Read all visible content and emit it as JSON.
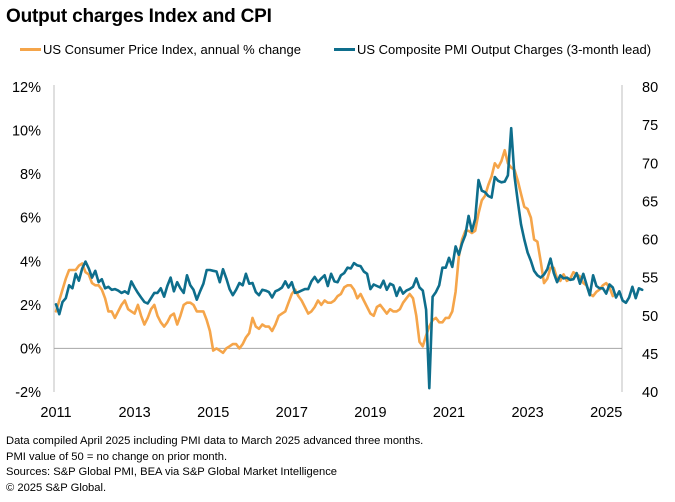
{
  "title": "Output charges Index and CPI",
  "legend": [
    {
      "label": "US Consumer Price Index, annual % change",
      "color": "#F5A54A"
    },
    {
      "label": "US Composite PMI Output Charges (3-month lead)",
      "color": "#0E6E8C"
    }
  ],
  "footer": [
    "Data compiled April 2025 including PMI data to March 2025 advanced three months.",
    "PMI value of 50 = no change on prior month.",
    "Sources: S&P Global PMI, BEA via S&P Global Market Intelligence",
    "© 2025 S&P Global."
  ],
  "chart_data": {
    "type": "line",
    "title": "Output charges Index and CPI",
    "x_start": "2011-01",
    "x_frequency": "monthly",
    "x_tick_labels": [
      "2011",
      "2013",
      "2015",
      "2017",
      "2019",
      "2021",
      "2023",
      "2025"
    ],
    "y_left": {
      "label": "",
      "ylim": [
        -2,
        12
      ],
      "ticks": [
        "-2%",
        "0%",
        "2%",
        "4%",
        "6%",
        "8%",
        "10%",
        "12%"
      ]
    },
    "y_right": {
      "label": "",
      "ylim": [
        40,
        80
      ],
      "ticks": [
        "40",
        "45",
        "50",
        "55",
        "60",
        "65",
        "70",
        "75",
        "80"
      ]
    },
    "grid": false,
    "reference_line": {
      "axis": "left",
      "value": 0
    },
    "legend_position": "top",
    "series": [
      {
        "name": "US Consumer Price Index, annual % change",
        "axis": "left",
        "color": "#F5A54A",
        "start": "2011-01",
        "values": [
          1.7,
          2.2,
          2.7,
          3.2,
          3.6,
          3.6,
          3.6,
          3.8,
          3.9,
          3.5,
          3.4,
          3.0,
          2.9,
          2.9,
          2.7,
          2.3,
          1.7,
          1.7,
          1.4,
          1.7,
          2.0,
          2.2,
          1.8,
          1.7,
          1.6,
          2.0,
          1.5,
          1.1,
          1.4,
          1.8,
          2.0,
          1.5,
          1.2,
          1.0,
          1.2,
          1.5,
          1.6,
          1.1,
          1.5,
          2.0,
          2.1,
          2.1,
          2.0,
          1.7,
          1.7,
          1.7,
          1.3,
          0.8,
          -0.1,
          0.0,
          -0.1,
          -0.2,
          0.0,
          0.1,
          0.2,
          0.2,
          0.0,
          0.2,
          0.5,
          0.7,
          1.4,
          1.0,
          0.9,
          1.1,
          1.0,
          1.0,
          0.8,
          1.1,
          1.5,
          1.6,
          1.7,
          2.1,
          2.5,
          2.7,
          2.4,
          2.2,
          1.9,
          1.6,
          1.7,
          1.9,
          2.2,
          2.0,
          2.2,
          2.1,
          2.1,
          2.2,
          2.4,
          2.5,
          2.8,
          2.9,
          2.9,
          2.7,
          2.3,
          2.5,
          2.2,
          1.9,
          1.6,
          1.5,
          1.9,
          2.0,
          1.8,
          1.6,
          1.8,
          1.7,
          1.7,
          1.8,
          2.1,
          2.3,
          2.5,
          2.3,
          1.5,
          0.3,
          0.1,
          0.6,
          1.0,
          1.3,
          1.4,
          1.2,
          1.2,
          1.4,
          1.4,
          1.7,
          2.6,
          4.2,
          5.0,
          5.4,
          5.4,
          5.3,
          5.4,
          6.2,
          6.8,
          7.0,
          7.5,
          7.9,
          8.5,
          8.3,
          8.6,
          9.1,
          8.5,
          8.3,
          8.2,
          7.7,
          7.1,
          6.5,
          6.4,
          6.0,
          5.0,
          4.9,
          4.0,
          3.0,
          3.2,
          3.7,
          3.7,
          3.2,
          3.1,
          3.4,
          3.1,
          3.2,
          3.5,
          3.4,
          3.3,
          3.0,
          2.9,
          2.5,
          2.4,
          2.6,
          2.7,
          2.9,
          3.0,
          2.8,
          2.4
        ]
      },
      {
        "name": "US Composite PMI Output Charges (3-month lead)",
        "axis": "right",
        "color": "#0E6E8C",
        "start": "2011-01",
        "values": [
          51.5,
          50.2,
          51.8,
          52.3,
          54.0,
          53.6,
          55.5,
          54.6,
          56.2,
          57.1,
          56.2,
          55.0,
          55.9,
          54.4,
          54.8,
          53.6,
          53.8,
          53.4,
          53.5,
          53.3,
          53.0,
          53.2,
          52.9,
          54.5,
          53.7,
          53.0,
          52.4,
          51.8,
          51.6,
          52.3,
          53.0,
          53.0,
          53.6,
          52.5,
          53.9,
          55.0,
          53.2,
          54.4,
          53.6,
          53.0,
          55.3,
          54.0,
          53.4,
          52.1,
          53.2,
          54.2,
          56.0,
          56.0,
          55.9,
          55.8,
          54.4,
          56.1,
          54.9,
          53.5,
          52.7,
          53.4,
          54.3,
          54.0,
          55.5,
          54.2,
          54.3,
          53.1,
          52.7,
          53.4,
          53.3,
          53.1,
          52.4,
          53.2,
          53.4,
          53.7,
          54.5,
          53.7,
          54.4,
          53.0,
          53.1,
          53.3,
          53.5,
          53.5,
          54.5,
          55.1,
          54.4,
          54.9,
          55.3,
          53.9,
          55.5,
          54.5,
          54.4,
          55.3,
          55.6,
          56.3,
          56.2,
          56.9,
          56.6,
          56.5,
          55.8,
          55.5,
          53.5,
          54.1,
          53.9,
          53.7,
          54.6,
          53.4,
          54.2,
          54.0,
          52.6,
          53.7,
          52.9,
          53.3,
          53.5,
          53.8,
          54.9,
          53.7,
          53.3,
          50.8,
          40.5,
          52.5,
          53.1,
          54.0,
          56.3,
          56.3,
          57.6,
          56.4,
          59.1,
          58.0,
          59.5,
          60.6,
          63.1,
          61.1,
          62.7,
          67.8,
          66.4,
          66.2,
          65.7,
          65.5,
          68.2,
          67.7,
          67.5,
          67.6,
          68.4,
          74.6,
          68.3,
          65.0,
          62.0,
          60.0,
          58.3,
          57.2,
          55.9,
          55.3,
          55.0,
          55.4,
          56.1,
          57.5,
          55.6,
          54.4,
          55.3,
          54.9,
          55.0,
          54.7,
          54.8,
          55.6,
          54.2,
          55.5,
          54.1,
          52.7,
          55.3,
          53.9,
          53.6,
          53.6,
          52.9,
          54.1,
          53.7,
          52.4,
          53.2,
          52.0,
          51.7,
          52.4,
          53.8,
          52.3,
          53.6,
          53.4
        ]
      }
    ]
  }
}
